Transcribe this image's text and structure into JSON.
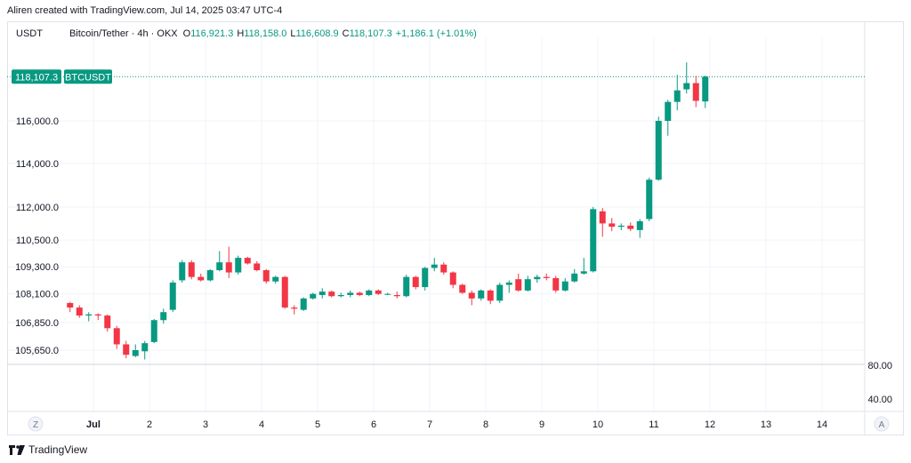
{
  "header": {
    "caption": "Aliren created with TradingView.com, Jul 14, 2025 03:47 UTC-4"
  },
  "legend": {
    "currency": "USDT",
    "symbol": "Bitcoin/Tether · 4h · OKX",
    "open_key": "O",
    "open": "116,921.3",
    "high_key": "H",
    "high": "118,158.0",
    "low_key": "L",
    "low": "116,608.9",
    "close_key": "C",
    "close": "118,107.3",
    "change": "+1,186.1 (+1.01%)"
  },
  "footer": {
    "brand": "TradingView"
  },
  "colors": {
    "up": "#089981",
    "down": "#f23645",
    "grid": "#f0f3fa",
    "text": "#131722"
  },
  "chart_data": {
    "type": "candlestick",
    "symbol": "BTCUSDT",
    "interval": "4h",
    "exchange": "OKX",
    "last_price_label": "118,107.3",
    "price_axis_ticks": [
      "116,000.0",
      "114,000.0",
      "112,000.0",
      "110,500.0",
      "109,300.0",
      "108,100.0",
      "106,850.0",
      "105,650.0"
    ],
    "price_axis_values": [
      116000,
      114000,
      112000,
      110500,
      109300,
      108100,
      106850,
      105650
    ],
    "indicator_axis_ticks": [
      "80.00",
      "40.00"
    ],
    "x_ticks": [
      "Jul",
      "2",
      "3",
      "4",
      "5",
      "6",
      "7",
      "8",
      "9",
      "10",
      "11",
      "12",
      "13",
      "14"
    ],
    "x_tick_days": [
      0,
      1,
      2,
      3,
      4,
      5,
      6,
      7,
      8,
      9,
      10,
      11,
      12,
      13
    ],
    "log_scale": true,
    "axis_buttons": [
      "Z",
      "A"
    ],
    "candles": [
      {
        "o": 107700,
        "h": 107750,
        "l": 107300,
        "c": 107500
      },
      {
        "o": 107500,
        "h": 107600,
        "l": 107050,
        "c": 107150
      },
      {
        "o": 107150,
        "h": 107300,
        "l": 106900,
        "c": 107200
      },
      {
        "o": 107200,
        "h": 107250,
        "l": 106950,
        "c": 107150
      },
      {
        "o": 107150,
        "h": 107200,
        "l": 106450,
        "c": 106600
      },
      {
        "o": 106600,
        "h": 106700,
        "l": 105700,
        "c": 105900
      },
      {
        "o": 105900,
        "h": 106050,
        "l": 105300,
        "c": 105450
      },
      {
        "o": 105400,
        "h": 105900,
        "l": 105350,
        "c": 105650
      },
      {
        "o": 105600,
        "h": 106050,
        "l": 105250,
        "c": 105950
      },
      {
        "o": 106000,
        "h": 107000,
        "l": 105950,
        "c": 106950
      },
      {
        "o": 106950,
        "h": 107450,
        "l": 106800,
        "c": 107300
      },
      {
        "o": 107400,
        "h": 108700,
        "l": 107300,
        "c": 108600
      },
      {
        "o": 108700,
        "h": 109600,
        "l": 108600,
        "c": 109500
      },
      {
        "o": 109500,
        "h": 109600,
        "l": 108750,
        "c": 108850
      },
      {
        "o": 108850,
        "h": 109000,
        "l": 108650,
        "c": 108700
      },
      {
        "o": 108700,
        "h": 109200,
        "l": 108650,
        "c": 109150
      },
      {
        "o": 109150,
        "h": 110000,
        "l": 109100,
        "c": 109500
      },
      {
        "o": 109500,
        "h": 110200,
        "l": 108800,
        "c": 109050
      },
      {
        "o": 109050,
        "h": 109800,
        "l": 108950,
        "c": 109700
      },
      {
        "o": 109700,
        "h": 109750,
        "l": 109400,
        "c": 109450
      },
      {
        "o": 109450,
        "h": 109550,
        "l": 109100,
        "c": 109150
      },
      {
        "o": 109150,
        "h": 109200,
        "l": 108550,
        "c": 108650
      },
      {
        "o": 108650,
        "h": 108900,
        "l": 108550,
        "c": 108850
      },
      {
        "o": 108850,
        "h": 108900,
        "l": 107450,
        "c": 107500
      },
      {
        "o": 107500,
        "h": 107600,
        "l": 107200,
        "c": 107450
      },
      {
        "o": 107400,
        "h": 107950,
        "l": 107350,
        "c": 107900
      },
      {
        "o": 107900,
        "h": 108150,
        "l": 107850,
        "c": 108100
      },
      {
        "o": 108050,
        "h": 108350,
        "l": 107900,
        "c": 108200
      },
      {
        "o": 108200,
        "h": 108250,
        "l": 107950,
        "c": 108000
      },
      {
        "o": 108000,
        "h": 108150,
        "l": 107950,
        "c": 108050
      },
      {
        "o": 108050,
        "h": 108250,
        "l": 107950,
        "c": 108150
      },
      {
        "o": 108150,
        "h": 108200,
        "l": 108000,
        "c": 108050
      },
      {
        "o": 108050,
        "h": 108300,
        "l": 108000,
        "c": 108250
      },
      {
        "o": 108250,
        "h": 108300,
        "l": 108050,
        "c": 108100
      },
      {
        "o": 108100,
        "h": 108150,
        "l": 108050,
        "c": 108100
      },
      {
        "o": 108050,
        "h": 108200,
        "l": 107900,
        "c": 108000
      },
      {
        "o": 108000,
        "h": 108950,
        "l": 107950,
        "c": 108850
      },
      {
        "o": 108850,
        "h": 108900,
        "l": 108300,
        "c": 108400
      },
      {
        "o": 108400,
        "h": 109300,
        "l": 108250,
        "c": 109250
      },
      {
        "o": 109250,
        "h": 109700,
        "l": 109100,
        "c": 109400
      },
      {
        "o": 109400,
        "h": 109500,
        "l": 108950,
        "c": 109050
      },
      {
        "o": 109050,
        "h": 109100,
        "l": 108350,
        "c": 108500
      },
      {
        "o": 108500,
        "h": 108550,
        "l": 108100,
        "c": 108150
      },
      {
        "o": 108150,
        "h": 108250,
        "l": 107600,
        "c": 107900
      },
      {
        "o": 107900,
        "h": 108300,
        "l": 107800,
        "c": 108250
      },
      {
        "o": 108250,
        "h": 108300,
        "l": 107650,
        "c": 107800
      },
      {
        "o": 107800,
        "h": 108600,
        "l": 107700,
        "c": 108500
      },
      {
        "o": 108500,
        "h": 108700,
        "l": 108150,
        "c": 108600
      },
      {
        "o": 108750,
        "h": 109000,
        "l": 108200,
        "c": 108250
      },
      {
        "o": 108250,
        "h": 108900,
        "l": 108200,
        "c": 108750
      },
      {
        "o": 108750,
        "h": 108950,
        "l": 108600,
        "c": 108850
      },
      {
        "o": 108850,
        "h": 109000,
        "l": 108700,
        "c": 108800
      },
      {
        "o": 108800,
        "h": 108900,
        "l": 108150,
        "c": 108250
      },
      {
        "o": 108250,
        "h": 108800,
        "l": 108200,
        "c": 108650
      },
      {
        "o": 108650,
        "h": 109200,
        "l": 108600,
        "c": 109000
      },
      {
        "o": 109000,
        "h": 109700,
        "l": 108950,
        "c": 109100
      },
      {
        "o": 109100,
        "h": 112000,
        "l": 109050,
        "c": 111900
      },
      {
        "o": 111800,
        "h": 111950,
        "l": 110650,
        "c": 111250
      },
      {
        "o": 111250,
        "h": 111500,
        "l": 110900,
        "c": 111100
      },
      {
        "o": 111100,
        "h": 111250,
        "l": 110950,
        "c": 111150
      },
      {
        "o": 111150,
        "h": 111300,
        "l": 110900,
        "c": 111000
      },
      {
        "o": 110950,
        "h": 111450,
        "l": 110600,
        "c": 111350
      },
      {
        "o": 111450,
        "h": 113350,
        "l": 111350,
        "c": 113250
      },
      {
        "o": 113250,
        "h": 116200,
        "l": 113200,
        "c": 116000
      },
      {
        "o": 116000,
        "h": 117000,
        "l": 115300,
        "c": 116900
      },
      {
        "o": 116900,
        "h": 118200,
        "l": 116500,
        "c": 117450
      },
      {
        "o": 117500,
        "h": 118800,
        "l": 117300,
        "c": 117800
      },
      {
        "o": 117800,
        "h": 118150,
        "l": 116650,
        "c": 116950
      },
      {
        "o": 116921.3,
        "h": 118158.0,
        "l": 116608.9,
        "c": 118107.3
      }
    ]
  }
}
